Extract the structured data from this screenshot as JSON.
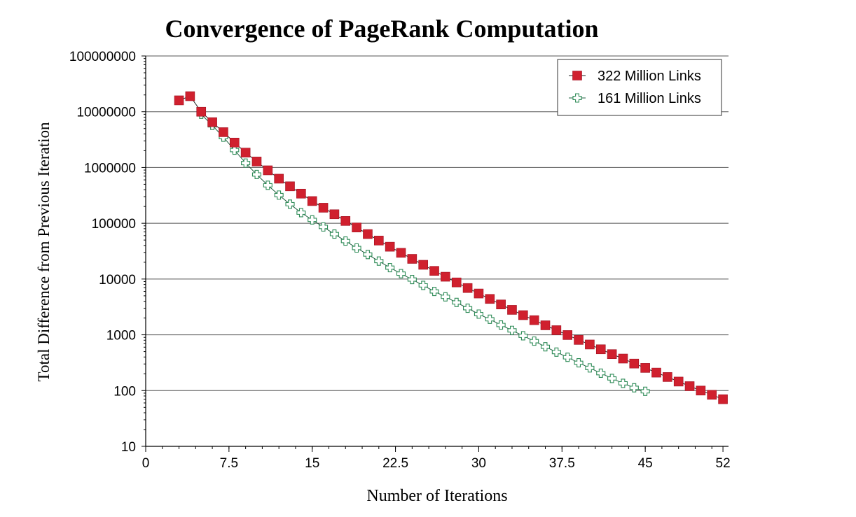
{
  "chart_data": {
    "type": "line",
    "title": "Convergence of PageRank Computation",
    "xlabel": "Number of Iterations",
    "ylabel": "Total Difference from Previous Iteration",
    "xlim": [
      0,
      52.5
    ],
    "ylim": [
      10,
      100000000
    ],
    "yscale": "log",
    "xticks": [
      0,
      7.5,
      15,
      22.5,
      30,
      37.5,
      45,
      52
    ],
    "xtick_labels": [
      "0",
      "7.5",
      "15",
      "22.5",
      "30",
      "37.5",
      "45",
      "52"
    ],
    "yticks": [
      10,
      100,
      1000,
      10000,
      100000,
      1000000,
      10000000,
      100000000
    ],
    "ytick_labels": [
      "10",
      "100",
      "1000",
      "10000",
      "100000",
      "1000000",
      "10000000",
      "100000000"
    ],
    "grid": "horizontal",
    "legend_position": "top-right",
    "series": [
      {
        "name": "322 Million Links",
        "color": "#d0202e",
        "marker": "filled-square",
        "x": [
          3,
          4,
          5,
          6,
          7,
          8,
          9,
          10,
          11,
          12,
          13,
          14,
          15,
          16,
          17,
          18,
          19,
          20,
          21,
          22,
          23,
          24,
          25,
          26,
          27,
          28,
          29,
          30,
          31,
          32,
          33,
          34,
          35,
          36,
          37,
          38,
          39,
          40,
          41,
          42,
          43,
          44,
          45,
          46,
          47,
          48,
          49,
          50,
          51,
          52
        ],
        "values": [
          16000000,
          19000000,
          10000000,
          6500000,
          4300000,
          2800000,
          1850000,
          1280000,
          890000,
          630000,
          460000,
          340000,
          250000,
          190000,
          145000,
          110000,
          84000,
          64000,
          49000,
          38000,
          29500,
          23000,
          18000,
          14000,
          11000,
          8700,
          6900,
          5500,
          4400,
          3500,
          2800,
          2250,
          1830,
          1480,
          1210,
          990,
          810,
          670,
          550,
          450,
          375,
          305,
          255,
          210,
          175,
          145,
          120,
          100,
          84,
          70
        ]
      },
      {
        "name": "161 Million Links",
        "color": "#2e8b57",
        "marker": "open-cross",
        "x": [
          5,
          6,
          7,
          8,
          9,
          10,
          11,
          12,
          13,
          14,
          15,
          16,
          17,
          18,
          19,
          20,
          21,
          22,
          23,
          24,
          25,
          26,
          27,
          28,
          29,
          30,
          31,
          32,
          33,
          34,
          35,
          36,
          37,
          38,
          39,
          40,
          41,
          42,
          43,
          44,
          45
        ],
        "values": [
          9000000,
          5700000,
          3500000,
          2050000,
          1200000,
          750000,
          480000,
          320000,
          220000,
          155000,
          115000,
          86000,
          64000,
          48000,
          36000,
          27500,
          21000,
          16000,
          12500,
          9800,
          7700,
          6000,
          4800,
          3800,
          3000,
          2350,
          1900,
          1500,
          1200,
          960,
          770,
          610,
          490,
          395,
          315,
          255,
          205,
          165,
          135,
          112,
          97
        ]
      }
    ]
  }
}
